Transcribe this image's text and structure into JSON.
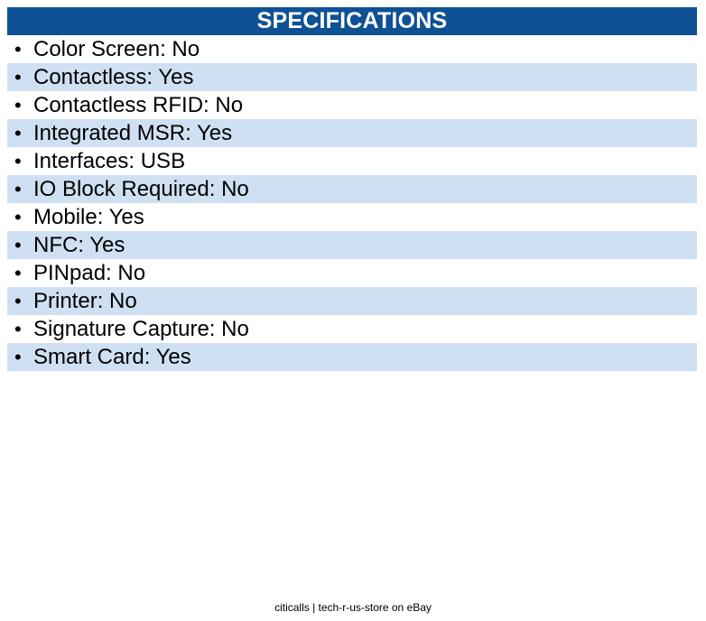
{
  "header": {
    "title": "SPECIFICATIONS"
  },
  "specs": [
    "Color Screen: No",
    "Contactless: Yes",
    "Contactless RFID: No",
    "Integrated MSR: Yes",
    "Interfaces: USB",
    "IO Block Required: No",
    "Mobile: Yes",
    "NFC: Yes",
    "PINpad: No",
    "Printer: No",
    "Signature Capture: No",
    "Smart Card: Yes"
  ],
  "bullet": "•",
  "footer": {
    "text": "citicalls | tech-r-us-store on eBay"
  },
  "colors": {
    "header_bg": "#0e5195",
    "alt_row_bg": "#cfe0f2"
  }
}
